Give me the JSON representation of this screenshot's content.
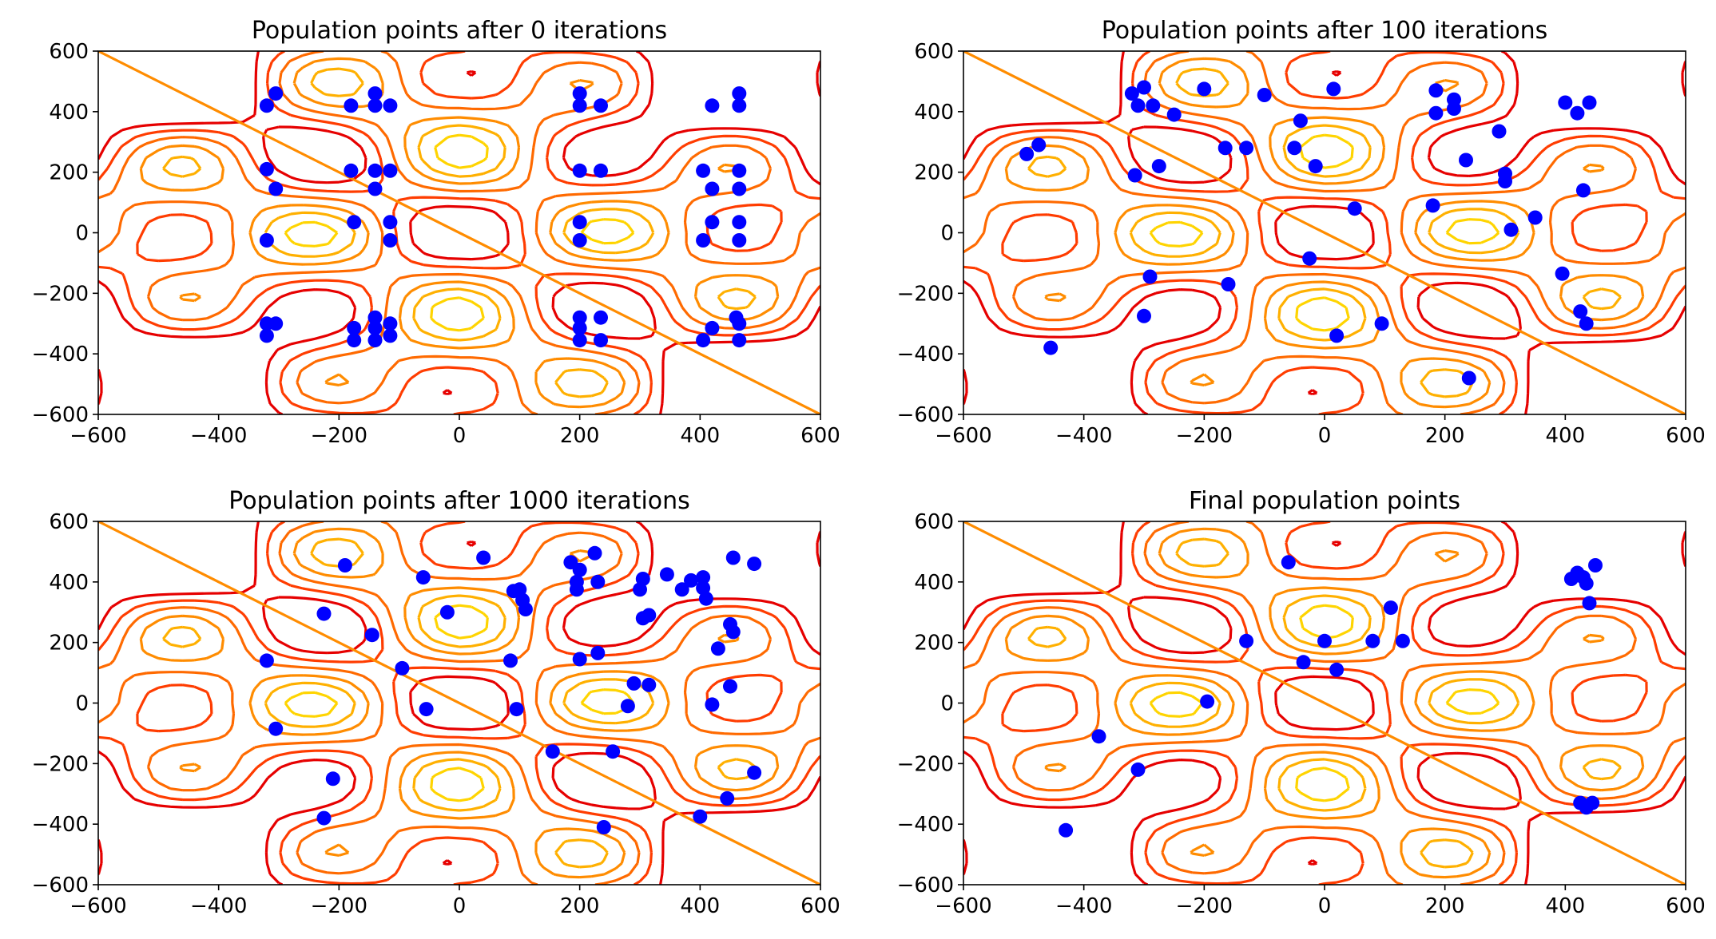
{
  "chart_data": [
    {
      "type": "scatter",
      "title": "Population points after 0 iterations",
      "xlim": [
        -600,
        600
      ],
      "ylim": [
        -600,
        600
      ],
      "x_ticks": [
        "−600",
        "−400",
        "−200",
        "0",
        "200",
        "400",
        "600"
      ],
      "y_ticks": [
        "−600",
        "−400",
        "−200",
        "0",
        "200",
        "400",
        "600"
      ],
      "grid": false,
      "background": "filled contour lines (yellow → orange → red)",
      "point_color": "#0000ff",
      "points": [
        [
          -320,
          420
        ],
        [
          -305,
          460
        ],
        [
          -180,
          420
        ],
        [
          -140,
          460
        ],
        [
          -140,
          420
        ],
        [
          -115,
          420
        ],
        [
          -320,
          210
        ],
        [
          -305,
          145
        ],
        [
          -180,
          205
        ],
        [
          -140,
          205
        ],
        [
          -140,
          145
        ],
        [
          -115,
          205
        ],
        [
          -320,
          -25
        ],
        [
          -175,
          35
        ],
        [
          -115,
          35
        ],
        [
          -115,
          -25
        ],
        [
          -320,
          -300
        ],
        [
          -320,
          -340
        ],
        [
          -305,
          -300
        ],
        [
          -175,
          -315
        ],
        [
          -175,
          -355
        ],
        [
          -140,
          -280
        ],
        [
          -140,
          -315
        ],
        [
          -140,
          -355
        ],
        [
          -115,
          -300
        ],
        [
          -115,
          -340
        ],
        [
          200,
          460
        ],
        [
          200,
          420
        ],
        [
          235,
          420
        ],
        [
          200,
          205
        ],
        [
          235,
          205
        ],
        [
          200,
          35
        ],
        [
          200,
          -25
        ],
        [
          200,
          -280
        ],
        [
          200,
          -315
        ],
        [
          200,
          -355
        ],
        [
          235,
          -280
        ],
        [
          235,
          -355
        ],
        [
          405,
          205
        ],
        [
          420,
          145
        ],
        [
          465,
          205
        ],
        [
          465,
          145
        ],
        [
          420,
          420
        ],
        [
          465,
          460
        ],
        [
          465,
          420
        ],
        [
          405,
          -25
        ],
        [
          420,
          35
        ],
        [
          465,
          35
        ],
        [
          465,
          -25
        ],
        [
          405,
          -355
        ],
        [
          420,
          -315
        ],
        [
          460,
          -280
        ],
        [
          465,
          -300
        ],
        [
          465,
          -355
        ]
      ]
    },
    {
      "type": "scatter",
      "title": "Population points after 100 iterations",
      "xlim": [
        -600,
        600
      ],
      "ylim": [
        -600,
        600
      ],
      "x_ticks": [
        "−600",
        "−400",
        "−200",
        "0",
        "200",
        "400",
        "600"
      ],
      "y_ticks": [
        "−600",
        "−400",
        "−200",
        "0",
        "200",
        "400",
        "600"
      ],
      "grid": false,
      "background": "filled contour lines (yellow → orange → red)",
      "point_color": "#0000ff",
      "points": [
        [
          -495,
          260
        ],
        [
          -475,
          290
        ],
        [
          -320,
          460
        ],
        [
          -300,
          480
        ],
        [
          -310,
          420
        ],
        [
          -285,
          420
        ],
        [
          -250,
          390
        ],
        [
          -200,
          475
        ],
        [
          -315,
          190
        ],
        [
          -275,
          220
        ],
        [
          -165,
          280
        ],
        [
          -130,
          280
        ],
        [
          -100,
          455
        ],
        [
          -50,
          280
        ],
        [
          -40,
          370
        ],
        [
          15,
          475
        ],
        [
          -15,
          220
        ],
        [
          185,
          470
        ],
        [
          185,
          395
        ],
        [
          215,
          440
        ],
        [
          215,
          410
        ],
        [
          235,
          240
        ],
        [
          290,
          335
        ],
        [
          300,
          195
        ],
        [
          300,
          170
        ],
        [
          310,
          10
        ],
        [
          350,
          50
        ],
        [
          400,
          430
        ],
        [
          420,
          395
        ],
        [
          440,
          430
        ],
        [
          430,
          140
        ],
        [
          -290,
          -145
        ],
        [
          -300,
          -275
        ],
        [
          -160,
          -170
        ],
        [
          -25,
          -85
        ],
        [
          20,
          -340
        ],
        [
          95,
          -300
        ],
        [
          50,
          80
        ],
        [
          180,
          90
        ],
        [
          240,
          -480
        ],
        [
          395,
          -135
        ],
        [
          425,
          -260
        ],
        [
          435,
          -300
        ],
        [
          -455,
          -380
        ]
      ]
    },
    {
      "type": "scatter",
      "title": "Population points after 1000 iterations",
      "xlim": [
        -600,
        600
      ],
      "ylim": [
        -600,
        600
      ],
      "x_ticks": [
        "−600",
        "−400",
        "−200",
        "0",
        "200",
        "400",
        "600"
      ],
      "y_ticks": [
        "−600",
        "−400",
        "−200",
        "0",
        "200",
        "400",
        "600"
      ],
      "grid": false,
      "background": "filled contour lines (yellow → orange → red)",
      "point_color": "#0000ff",
      "points": [
        [
          -190,
          455
        ],
        [
          -60,
          415
        ],
        [
          40,
          480
        ],
        [
          185,
          465
        ],
        [
          200,
          440
        ],
        [
          225,
          495
        ],
        [
          195,
          400
        ],
        [
          195,
          375
        ],
        [
          230,
          400
        ],
        [
          300,
          375
        ],
        [
          305,
          410
        ],
        [
          345,
          425
        ],
        [
          370,
          375
        ],
        [
          385,
          405
        ],
        [
          405,
          415
        ],
        [
          410,
          345
        ],
        [
          405,
          380
        ],
        [
          455,
          480
        ],
        [
          490,
          460
        ],
        [
          90,
          370
        ],
        [
          100,
          375
        ],
        [
          105,
          340
        ],
        [
          110,
          310
        ],
        [
          -225,
          295
        ],
        [
          -20,
          300
        ],
        [
          -145,
          225
        ],
        [
          -95,
          115
        ],
        [
          -320,
          140
        ],
        [
          85,
          140
        ],
        [
          200,
          145
        ],
        [
          230,
          165
        ],
        [
          305,
          280
        ],
        [
          315,
          290
        ],
        [
          430,
          180
        ],
        [
          450,
          260
        ],
        [
          455,
          235
        ],
        [
          -305,
          -85
        ],
        [
          -55,
          -20
        ],
        [
          95,
          -20
        ],
        [
          280,
          -10
        ],
        [
          290,
          65
        ],
        [
          315,
          60
        ],
        [
          420,
          -5
        ],
        [
          450,
          55
        ],
        [
          -210,
          -250
        ],
        [
          -225,
          -380
        ],
        [
          155,
          -160
        ],
        [
          255,
          -160
        ],
        [
          240,
          -410
        ],
        [
          400,
          -375
        ],
        [
          445,
          -315
        ],
        [
          490,
          -230
        ]
      ]
    },
    {
      "type": "scatter",
      "title": "Final population points",
      "xlim": [
        -600,
        600
      ],
      "ylim": [
        -600,
        600
      ],
      "x_ticks": [
        "−600",
        "−400",
        "−200",
        "0",
        "200",
        "400",
        "600"
      ],
      "y_ticks": [
        "−600",
        "−400",
        "−200",
        "0",
        "200",
        "400",
        "600"
      ],
      "grid": false,
      "background": "filled contour lines (yellow → orange → red)",
      "point_color": "#0000ff",
      "points": [
        [
          -60,
          465
        ],
        [
          -130,
          205
        ],
        [
          -35,
          135
        ],
        [
          0,
          205
        ],
        [
          20,
          110
        ],
        [
          80,
          205
        ],
        [
          110,
          315
        ],
        [
          130,
          205
        ],
        [
          410,
          410
        ],
        [
          420,
          430
        ],
        [
          430,
          415
        ],
        [
          435,
          395
        ],
        [
          440,
          330
        ],
        [
          450,
          455
        ],
        [
          -375,
          -110
        ],
        [
          -310,
          -220
        ],
        [
          -195,
          5
        ],
        [
          -430,
          -420
        ],
        [
          425,
          -330
        ],
        [
          445,
          -330
        ],
        [
          435,
          -345
        ]
      ]
    }
  ]
}
